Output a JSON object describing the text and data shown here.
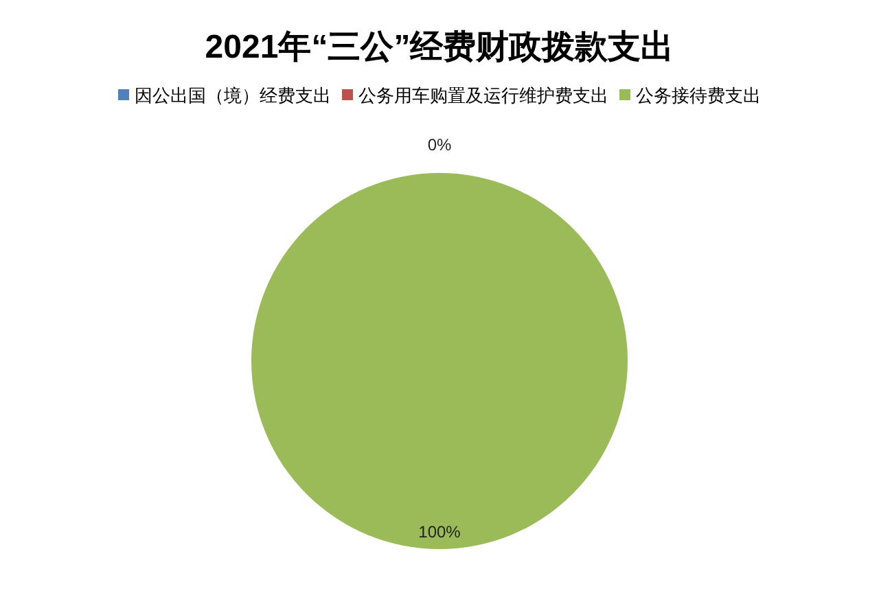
{
  "chart_data": {
    "type": "pie",
    "title": "2021年“三公”经费财政拨款支出",
    "categories": [
      "因公出国（境）经费支出",
      "公务用车购置及运行维护费支出",
      "公务接待费支出"
    ],
    "values": [
      0,
      0,
      100
    ],
    "colors": [
      "#4f81bd",
      "#c0504d",
      "#9bbb59"
    ],
    "value_labels": [
      "0%",
      null,
      "100%"
    ],
    "legend": "top"
  }
}
